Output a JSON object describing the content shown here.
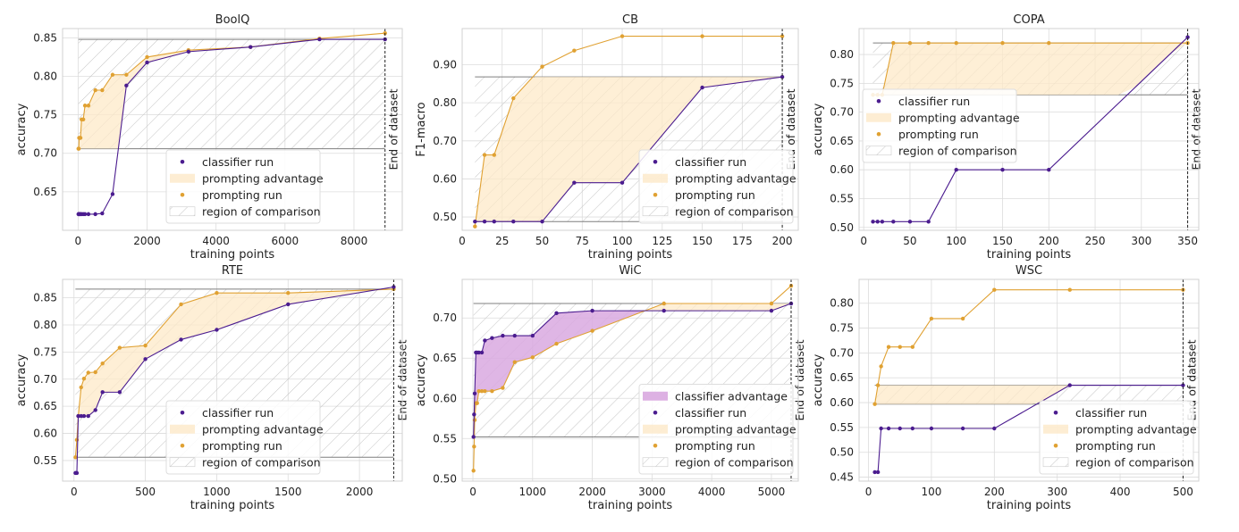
{
  "colors": {
    "classifier": "#4b1c8f",
    "prompting": "#e0a132",
    "prompt_adv_fill": "#fde9c8",
    "class_adv_fill": "#d9a9e0",
    "grid": "#dcdcdc",
    "region_line": "#7f7f7f",
    "hatch": "#bdbdbd"
  },
  "legend_labels": {
    "classifier_advantage": "classifier advantage",
    "classifier_run": "classifier run",
    "prompting_advantage": "prompting advantage",
    "prompting_run": "prompting run",
    "region": "region of comparison"
  },
  "end_of_dataset_label": "End of dataset",
  "chart_data": [
    {
      "type": "line",
      "title": "BoolQ",
      "xlabel": "training points",
      "ylabel": "accuracy",
      "xlim": [
        -450,
        9400
      ],
      "ylim": [
        0.6,
        0.862
      ],
      "xticks": [
        0,
        2000,
        4000,
        6000,
        8000
      ],
      "xtick_labels": [
        "0",
        "2000",
        "4000",
        "6000",
        "8000"
      ],
      "yticks": [
        0.65,
        0.7,
        0.75,
        0.8,
        0.85
      ],
      "ytick_labels": [
        "0.65",
        "0.70",
        "0.75",
        "0.80",
        "0.85"
      ],
      "end_x": 8900,
      "region": [
        0.706,
        0.848
      ],
      "legend_position": "lower-center",
      "legend_items": [
        "classifier_run",
        "prompting_advantage",
        "prompting_run",
        "region"
      ],
      "classifier": {
        "x": [
          10,
          20,
          30,
          50,
          70,
          100,
          150,
          200,
          300,
          500,
          700,
          1000,
          1400,
          2000,
          3200,
          5000,
          7000,
          8900
        ],
        "y": [
          0.621,
          0.621,
          0.621,
          0.621,
          0.621,
          0.621,
          0.621,
          0.621,
          0.621,
          0.621,
          0.622,
          0.647,
          0.788,
          0.818,
          0.832,
          0.838,
          0.848,
          0.848
        ]
      },
      "prompting": {
        "x": [
          10,
          20,
          30,
          50,
          70,
          100,
          150,
          200,
          300,
          500,
          700,
          1000,
          1400,
          2000,
          3200,
          5000,
          7000,
          8900
        ],
        "y": [
          0.706,
          0.706,
          0.72,
          0.72,
          0.72,
          0.744,
          0.744,
          0.762,
          0.762,
          0.782,
          0.782,
          0.802,
          0.802,
          0.825,
          0.834,
          0.838,
          0.849,
          0.856
        ]
      }
    },
    {
      "type": "line",
      "title": "CB",
      "xlabel": "training points",
      "ylabel": "F1-macro",
      "xlim": [
        0,
        210
      ],
      "ylim": [
        0.465,
        0.995
      ],
      "xticks": [
        0,
        25,
        50,
        75,
        100,
        125,
        150,
        175,
        200
      ],
      "xtick_labels": [
        "0",
        "25",
        "50",
        "75",
        "100",
        "125",
        "150",
        "175",
        "200"
      ],
      "yticks": [
        0.5,
        0.6,
        0.7,
        0.8,
        0.9
      ],
      "ytick_labels": [
        "0.50",
        "0.60",
        "0.70",
        "0.80",
        "0.90"
      ],
      "end_x": 200,
      "region": [
        0.488,
        0.868
      ],
      "legend_position": "lower-right",
      "legend_items": [
        "classifier_run",
        "prompting_advantage",
        "prompting_run",
        "region"
      ],
      "classifier": {
        "x": [
          8,
          14,
          20,
          32,
          50,
          70,
          100,
          150,
          200
        ],
        "y": [
          0.488,
          0.488,
          0.488,
          0.488,
          0.488,
          0.59,
          0.59,
          0.84,
          0.868
        ]
      },
      "prompting": {
        "x": [
          8,
          14,
          20,
          32,
          50,
          70,
          100,
          150,
          200
        ],
        "y": [
          0.475,
          0.663,
          0.663,
          0.812,
          0.895,
          0.937,
          0.975,
          0.975,
          0.975
        ]
      }
    },
    {
      "type": "line",
      "title": "COPA",
      "xlabel": "training points",
      "ylabel": "accuracy",
      "xlim": [
        -5,
        362
      ],
      "ylim": [
        0.495,
        0.845
      ],
      "xticks": [
        0,
        50,
        100,
        150,
        200,
        250,
        300,
        350
      ],
      "xtick_labels": [
        "0",
        "50",
        "100",
        "150",
        "200",
        "250",
        "300",
        "350"
      ],
      "yticks": [
        0.5,
        0.55,
        0.6,
        0.65,
        0.7,
        0.75,
        0.8
      ],
      "ytick_labels": [
        "0.50",
        "0.55",
        "0.60",
        "0.65",
        "0.70",
        "0.75",
        "0.80"
      ],
      "end_x": 350,
      "region": [
        0.73,
        0.82
      ],
      "legend_position": "upper-left",
      "legend_items": [
        "classifier_run",
        "prompting_advantage",
        "prompting_run",
        "region"
      ],
      "classifier": {
        "x": [
          10,
          15,
          20,
          32,
          50,
          70,
          100,
          150,
          200,
          350
        ],
        "y": [
          0.51,
          0.51,
          0.51,
          0.51,
          0.51,
          0.51,
          0.6,
          0.6,
          0.6,
          0.83
        ]
      },
      "prompting": {
        "x": [
          10,
          15,
          20,
          32,
          50,
          70,
          100,
          150,
          200,
          350
        ],
        "y": [
          0.73,
          0.73,
          0.73,
          0.82,
          0.82,
          0.82,
          0.82,
          0.82,
          0.82,
          0.82
        ]
      }
    },
    {
      "type": "line",
      "title": "RTE",
      "xlabel": "training points",
      "ylabel": "accuracy",
      "xlim": [
        -80,
        2300
      ],
      "ylim": [
        0.512,
        0.884
      ],
      "xticks": [
        0,
        500,
        1000,
        1500,
        2000
      ],
      "xtick_labels": [
        "0",
        "500",
        "1000",
        "1500",
        "2000"
      ],
      "yticks": [
        0.55,
        0.6,
        0.65,
        0.7,
        0.75,
        0.8,
        0.85
      ],
      "ytick_labels": [
        "0.55",
        "0.60",
        "0.65",
        "0.70",
        "0.75",
        "0.80",
        "0.85"
      ],
      "end_x": 2240,
      "region": [
        0.556,
        0.866
      ],
      "legend_position": "lower-center",
      "legend_items": [
        "classifier_run",
        "prompting_advantage",
        "prompting_run",
        "region"
      ],
      "classifier": {
        "x": [
          10,
          20,
          30,
          50,
          70,
          100,
          150,
          200,
          320,
          500,
          750,
          1000,
          1500,
          2240
        ],
        "y": [
          0.527,
          0.527,
          0.632,
          0.632,
          0.632,
          0.632,
          0.643,
          0.676,
          0.676,
          0.737,
          0.773,
          0.791,
          0.838,
          0.87
        ]
      },
      "prompting": {
        "x": [
          10,
          20,
          30,
          50,
          70,
          100,
          150,
          200,
          320,
          500,
          750,
          1000,
          1500,
          2240
        ],
        "y": [
          0.556,
          0.588,
          0.632,
          0.685,
          0.701,
          0.712,
          0.713,
          0.729,
          0.758,
          0.762,
          0.838,
          0.859,
          0.859,
          0.866
        ]
      }
    },
    {
      "type": "line",
      "title": "WiC",
      "xlabel": "training points",
      "ylabel": "accuracy",
      "xlim": [
        -180,
        5450
      ],
      "ylim": [
        0.497,
        0.748
      ],
      "xticks": [
        0,
        1000,
        2000,
        3000,
        4000,
        5000
      ],
      "xtick_labels": [
        "0",
        "1000",
        "2000",
        "3000",
        "4000",
        "5000"
      ],
      "yticks": [
        0.5,
        0.55,
        0.6,
        0.65,
        0.7
      ],
      "ytick_labels": [
        "0.50",
        "0.55",
        "0.60",
        "0.65",
        "0.70"
      ],
      "end_x": 5330,
      "region": [
        0.552,
        0.718
      ],
      "legend_position": "lower-right",
      "legend_items": [
        "classifier_advantage",
        "classifier_run",
        "prompting_advantage",
        "prompting_run",
        "region"
      ],
      "classifier": {
        "x": [
          10,
          20,
          30,
          50,
          70,
          100,
          150,
          200,
          320,
          500,
          700,
          1000,
          1400,
          2000,
          3200,
          5000,
          5330
        ],
        "y": [
          0.552,
          0.58,
          0.606,
          0.657,
          0.657,
          0.657,
          0.657,
          0.672,
          0.675,
          0.678,
          0.678,
          0.678,
          0.706,
          0.709,
          0.709,
          0.709,
          0.718
        ]
      },
      "prompting": {
        "x": [
          10,
          20,
          30,
          50,
          70,
          100,
          150,
          200,
          320,
          500,
          700,
          1000,
          1400,
          2000,
          3200,
          5000,
          5330
        ],
        "y": [
          0.51,
          0.54,
          0.573,
          0.594,
          0.594,
          0.609,
          0.609,
          0.609,
          0.609,
          0.613,
          0.645,
          0.651,
          0.668,
          0.684,
          0.718,
          0.718,
          0.74
        ]
      }
    },
    {
      "type": "line",
      "title": "WSC",
      "xlabel": "training points",
      "ylabel": "accuracy",
      "xlim": [
        -15,
        525
      ],
      "ylim": [
        0.442,
        0.848
      ],
      "xticks": [
        0,
        100,
        200,
        300,
        400,
        500
      ],
      "xtick_labels": [
        "0",
        "100",
        "200",
        "300",
        "400",
        "500"
      ],
      "yticks": [
        0.45,
        0.5,
        0.55,
        0.6,
        0.65,
        0.7,
        0.75,
        0.8
      ],
      "ytick_labels": [
        "0.45",
        "0.50",
        "0.55",
        "0.60",
        "0.65",
        "0.70",
        "0.75",
        "0.80"
      ],
      "end_x": 500,
      "region": [
        0.597,
        0.635
      ],
      "legend_position": "lower-right",
      "legend_items": [
        "classifier_run",
        "prompting_advantage",
        "prompting_run",
        "region"
      ],
      "classifier": {
        "x": [
          10,
          15,
          20,
          32,
          50,
          70,
          100,
          150,
          200,
          320,
          500
        ],
        "y": [
          0.46,
          0.46,
          0.548,
          0.548,
          0.548,
          0.548,
          0.548,
          0.548,
          0.548,
          0.635,
          0.635
        ]
      },
      "prompting": {
        "x": [
          10,
          15,
          20,
          32,
          50,
          70,
          100,
          150,
          200,
          320,
          500
        ],
        "y": [
          0.597,
          0.635,
          0.673,
          0.712,
          0.712,
          0.712,
          0.769,
          0.769,
          0.827,
          0.827,
          0.827
        ]
      }
    }
  ]
}
